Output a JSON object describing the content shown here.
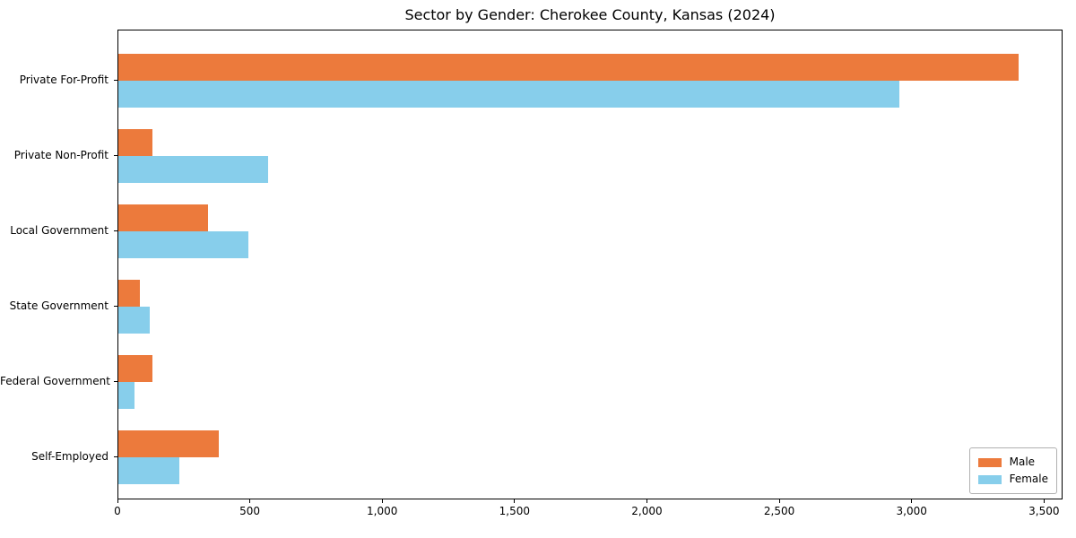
{
  "chart_data": {
    "type": "bar",
    "orientation": "horizontal",
    "title": "Sector by Gender: Cherokee County, Kansas (2024)",
    "categories": [
      "Private For-Profit",
      "Private Non-Profit",
      "Local Government",
      "State Government",
      "Federal Government",
      "Self-Employed"
    ],
    "series": [
      {
        "name": "Male",
        "color": "#ec7a3c",
        "values": [
          3400,
          130,
          340,
          80,
          130,
          380
        ]
      },
      {
        "name": "Female",
        "color": "#87ceeb",
        "values": [
          2950,
          565,
          490,
          120,
          60,
          230
        ]
      }
    ],
    "xlim": [
      0,
      3570
    ],
    "xticks": {
      "values": [
        0,
        500,
        1000,
        1500,
        2000,
        2500,
        3000,
        3500
      ],
      "labels": [
        "0",
        "500",
        "1,000",
        "1,500",
        "2,000",
        "2,500",
        "3,000",
        "3,500"
      ]
    },
    "xlabel": "",
    "ylabel": "",
    "grid": false,
    "legend_position": "lower right"
  }
}
